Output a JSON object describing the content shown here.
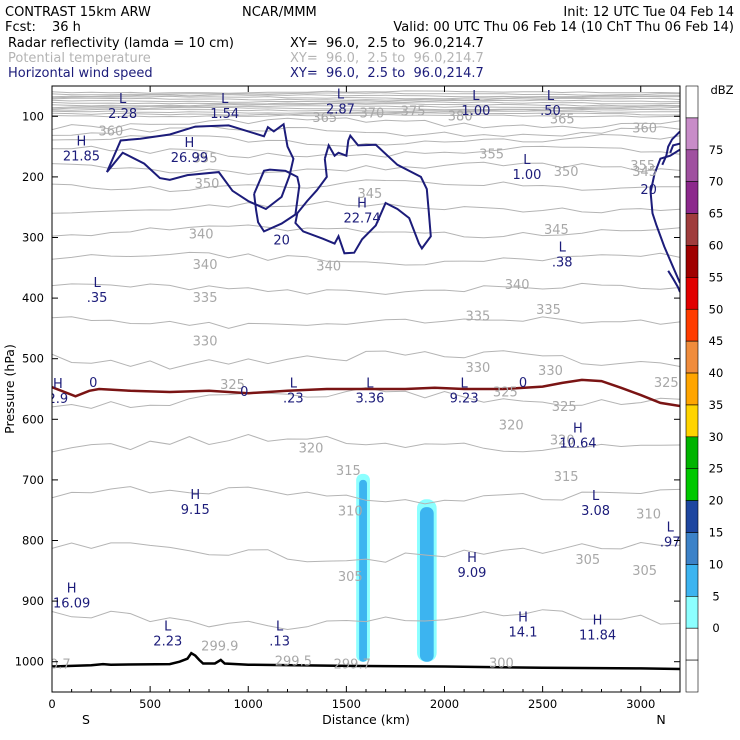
{
  "header": {
    "left_line1": "CONTRAST 15km ARW",
    "center_line1": "NCAR/MMM",
    "right_line1": "Init: 12 UTC Tue 04 Feb 14",
    "fcst_label": "Fcst:",
    "fcst_value": "36 h",
    "valid_line": "Valid: 00 UTC Thu 06 Feb 14 (10 ChT Thu 06 Feb 14)",
    "fields": [
      {
        "name": "Radar reflectivity (lamda = 10 cm)",
        "xy": "XY=  96.0,  2.5 to  96.0,214.7",
        "color": "#000000"
      },
      {
        "name": "Potential temperature",
        "xy": "XY=  96.0,  2.5 to  96.0,214.7",
        "color": "#b4b4b4"
      },
      {
        "name": "Horizontal wind speed",
        "xy": "XY=  96.0,  2.5 to  96.0,214.7",
        "color": "#1c1c7a"
      }
    ]
  },
  "chart_data": {
    "type": "cross-section",
    "xlabel": "Distance (km)",
    "ylabel": "Pressure (hPa)",
    "xlim": [
      0,
      3200
    ],
    "ylim": [
      1050,
      50
    ],
    "x_ticks": [
      0,
      500,
      1000,
      1500,
      2000,
      2500,
      3000
    ],
    "y_ticks": [
      100,
      200,
      300,
      400,
      500,
      600,
      700,
      800,
      900,
      1000
    ],
    "end_labels": {
      "left": "S",
      "right": "N"
    },
    "colorbar": {
      "title": "dBZ",
      "levels": [
        "0",
        "5",
        "10",
        "15",
        "20",
        "25",
        "30",
        "35",
        "40",
        "45",
        "50",
        "55",
        "60",
        "65",
        "70",
        "75"
      ],
      "colors": [
        "#ffffff",
        "#ffffff",
        "#8cffff",
        "#3cb4f0",
        "#3c82c8",
        "#1e46a0",
        "#00c800",
        "#00b400",
        "#ffd400",
        "#ffa500",
        "#f08c3c",
        "#ff3c00",
        "#e10000",
        "#a00000",
        "#a03c3c",
        "#8c288c",
        "#a050a0",
        "#c88cc8",
        "#ffffff"
      ]
    },
    "theta_labels": [
      {
        "text": "370",
        "x": 1630,
        "p": 95
      },
      {
        "text": "375",
        "x": 1840,
        "p": 92
      },
      {
        "text": "360",
        "x": 300,
        "p": 125
      },
      {
        "text": "365",
        "x": 1390,
        "p": 103
      },
      {
        "text": "380",
        "x": 2080,
        "p": 100
      },
      {
        "text": "365",
        "x": 2600,
        "p": 105
      },
      {
        "text": "360",
        "x": 3020,
        "p": 120
      },
      {
        "text": "355",
        "x": 780,
        "p": 170
      },
      {
        "text": "355",
        "x": 2240,
        "p": 163
      },
      {
        "text": "355",
        "x": 3010,
        "p": 182
      },
      {
        "text": "350",
        "x": 790,
        "p": 212
      },
      {
        "text": "350",
        "x": 2620,
        "p": 192
      },
      {
        "text": "345",
        "x": 1620,
        "p": 228
      },
      {
        "text": "345",
        "x": 3020,
        "p": 192
      },
      {
        "text": "345",
        "x": 2570,
        "p": 288
      },
      {
        "text": "340",
        "x": 760,
        "p": 295
      },
      {
        "text": "340",
        "x": 780,
        "p": 345
      },
      {
        "text": "340",
        "x": 1410,
        "p": 348
      },
      {
        "text": "340",
        "x": 2370,
        "p": 378
      },
      {
        "text": "335",
        "x": 780,
        "p": 400
      },
      {
        "text": "335",
        "x": 2170,
        "p": 430
      },
      {
        "text": "335",
        "x": 2530,
        "p": 420
      },
      {
        "text": "330",
        "x": 780,
        "p": 472
      },
      {
        "text": "330",
        "x": 2170,
        "p": 515
      },
      {
        "text": "330",
        "x": 2540,
        "p": 520
      },
      {
        "text": "325",
        "x": 920,
        "p": 543
      },
      {
        "text": "325",
        "x": 2310,
        "p": 556
      },
      {
        "text": "325",
        "x": 2610,
        "p": 580
      },
      {
        "text": "325",
        "x": 3130,
        "p": 540
      },
      {
        "text": "320",
        "x": 2340,
        "p": 610
      },
      {
        "text": "320",
        "x": 2600,
        "p": 635
      },
      {
        "text": "320",
        "x": 1320,
        "p": 648
      },
      {
        "text": "315",
        "x": 1510,
        "p": 685
      },
      {
        "text": "315",
        "x": 2620,
        "p": 695
      },
      {
        "text": "310",
        "x": 1520,
        "p": 752
      },
      {
        "text": "310",
        "x": 3040,
        "p": 757
      },
      {
        "text": "305",
        "x": 1520,
        "p": 860
      },
      {
        "text": "305",
        "x": 2730,
        "p": 832
      },
      {
        "text": "305",
        "x": 3020,
        "p": 850
      },
      {
        "text": "300",
        "x": 2290,
        "p": 1003
      },
      {
        "text": "299.9",
        "x": 855,
        "p": 975
      },
      {
        "text": "299.5",
        "x": 1230,
        "p": 1000
      },
      {
        "text": "299.7",
        "x": 1530,
        "p": 1005
      },
      {
        "text": "300.7",
        "x": 0,
        "p": 1005
      }
    ],
    "wind_hl": [
      {
        "kind": "L",
        "value": "2.28",
        "x": 360,
        "p": 85
      },
      {
        "kind": "L",
        "value": "1.54",
        "x": 880,
        "p": 85
      },
      {
        "kind": "L",
        "value": "2.87",
        "x": 1470,
        "p": 77
      },
      {
        "kind": "L",
        "value": "1.00",
        "x": 2160,
        "p": 80
      },
      {
        "kind": "L",
        "value": ".50",
        "x": 2540,
        "p": 80
      },
      {
        "kind": "H",
        "value": "21.85",
        "x": 150,
        "p": 155
      },
      {
        "kind": "H",
        "value": "26.99",
        "x": 700,
        "p": 157
      },
      {
        "kind": "L",
        "value": "1.00",
        "x": 2420,
        "p": 185
      },
      {
        "kind": "H",
        "value": "22.74",
        "x": 1580,
        "p": 257
      },
      {
        "kind": "L",
        "value": ".38",
        "x": 2600,
        "p": 330
      },
      {
        "kind": "L",
        "value": ".35",
        "x": 230,
        "p": 388
      },
      {
        "kind": "H",
        "value": "2.9",
        "x": 30,
        "p": 555
      },
      {
        "kind": "L",
        "value": ".23",
        "x": 1230,
        "p": 554
      },
      {
        "kind": "L",
        "value": "3.36",
        "x": 1620,
        "p": 554
      },
      {
        "kind": "L",
        "value": "9.23",
        "x": 2100,
        "p": 554
      },
      {
        "kind": "H",
        "value": "10.64",
        "x": 2680,
        "p": 628
      },
      {
        "kind": "H",
        "value": "9.15",
        "x": 730,
        "p": 738
      },
      {
        "kind": "L",
        "value": "3.08",
        "x": 2770,
        "p": 740
      },
      {
        "kind": "L",
        "value": ".97",
        "x": 3150,
        "p": 792
      },
      {
        "kind": "H",
        "value": "9.09",
        "x": 2140,
        "p": 842
      },
      {
        "kind": "H",
        "value": "16.09",
        "x": 100,
        "p": 892
      },
      {
        "kind": "L",
        "value": "2.23",
        "x": 590,
        "p": 955
      },
      {
        "kind": "L",
        "value": ".13",
        "x": 1160,
        "p": 955
      },
      {
        "kind": "H",
        "value": "14.1",
        "x": 2400,
        "p": 940
      },
      {
        "kind": "H",
        "value": "11.84",
        "x": 2780,
        "p": 945
      }
    ],
    "wind_contour_labels": [
      {
        "text": "20",
        "x": 1170,
        "p": 305
      },
      {
        "text": "20",
        "x": 3040,
        "p": 222
      },
      {
        "text": "0",
        "x": 210,
        "p": 540
      },
      {
        "text": "0",
        "x": 980,
        "p": 555
      },
      {
        "text": "0",
        "x": 2400,
        "p": 540
      }
    ],
    "wind_20_contours": [
      [
        [
          280,
          192
        ],
        [
          350,
          140
        ],
        [
          450,
          137
        ],
        [
          600,
          130
        ],
        [
          730,
          117
        ],
        [
          900,
          115
        ],
        [
          1000,
          125
        ],
        [
          1080,
          133
        ],
        [
          1100,
          118
        ],
        [
          1130,
          125
        ],
        [
          1180,
          113
        ],
        [
          1200,
          150
        ],
        [
          1230,
          170
        ],
        [
          1210,
          198
        ],
        [
          1170,
          233
        ],
        [
          1090,
          253
        ],
        [
          1000,
          240
        ],
        [
          920,
          223
        ],
        [
          850,
          192
        ],
        [
          690,
          197
        ],
        [
          600,
          205
        ],
        [
          550,
          202
        ],
        [
          470,
          178
        ],
        [
          360,
          160
        ],
        [
          280,
          192
        ]
      ],
      [
        [
          1030,
          228
        ],
        [
          1080,
          190
        ],
        [
          1110,
          188
        ],
        [
          1190,
          190
        ],
        [
          1250,
          200
        ],
        [
          1260,
          215
        ],
        [
          1240,
          262
        ],
        [
          1170,
          277
        ],
        [
          1080,
          290
        ],
        [
          1050,
          275
        ],
        [
          1040,
          255
        ],
        [
          1030,
          228
        ]
      ],
      [
        [
          1390,
          170
        ],
        [
          1410,
          148
        ],
        [
          1440,
          165
        ],
        [
          1460,
          160
        ],
        [
          1500,
          165
        ],
        [
          1510,
          140
        ],
        [
          1520,
          132
        ],
        [
          1560,
          148
        ],
        [
          1650,
          147
        ],
        [
          1760,
          180
        ],
        [
          1880,
          200
        ],
        [
          1910,
          220
        ],
        [
          1920,
          258
        ],
        [
          1930,
          298
        ],
        [
          1885,
          318
        ],
        [
          1870,
          310
        ],
        [
          1820,
          268
        ],
        [
          1760,
          253
        ],
        [
          1700,
          243
        ],
        [
          1650,
          280
        ],
        [
          1580,
          303
        ],
        [
          1540,
          325
        ],
        [
          1490,
          326
        ],
        [
          1460,
          298
        ],
        [
          1440,
          310
        ],
        [
          1380,
          302
        ],
        [
          1280,
          290
        ],
        [
          1240,
          276
        ],
        [
          1250,
          260
        ],
        [
          1300,
          240
        ],
        [
          1350,
          222
        ],
        [
          1400,
          200
        ],
        [
          1390,
          170
        ]
      ],
      [
        [
          3200,
          155
        ],
        [
          3150,
          165
        ],
        [
          3100,
          170
        ],
        [
          3070,
          195
        ],
        [
          3050,
          225
        ],
        [
          3060,
          260
        ],
        [
          3080,
          280
        ],
        [
          3120,
          315
        ],
        [
          3160,
          345
        ],
        [
          3200,
          375
        ]
      ],
      [
        [
          3140,
          355
        ],
        [
          3165,
          368
        ],
        [
          3190,
          382
        ],
        [
          3200,
          390
        ]
      ],
      [
        [
          3200,
          145
        ],
        [
          3165,
          148
        ],
        [
          3150,
          160
        ]
      ],
      [
        [
          3200,
          125
        ],
        [
          3160,
          138
        ],
        [
          3140,
          150
        ],
        [
          3130,
          165
        ],
        [
          3110,
          180
        ]
      ]
    ],
    "zero_wind_line": [
      [
        0,
        547
      ],
      [
        120,
        562
      ],
      [
        190,
        553
      ],
      [
        240,
        550
      ],
      [
        400,
        553
      ],
      [
        600,
        555
      ],
      [
        800,
        553
      ],
      [
        1000,
        557
      ],
      [
        1200,
        553
      ],
      [
        1400,
        550
      ],
      [
        1600,
        550
      ],
      [
        1800,
        550
      ],
      [
        1950,
        548
      ],
      [
        2100,
        550
      ],
      [
        2300,
        550
      ],
      [
        2500,
        546
      ],
      [
        2600,
        540
      ],
      [
        2700,
        535
      ],
      [
        2800,
        537
      ],
      [
        2900,
        548
      ],
      [
        3000,
        560
      ],
      [
        3100,
        573
      ],
      [
        3200,
        578
      ]
    ],
    "terrain": [
      [
        0,
        1008
      ],
      [
        200,
        1006
      ],
      [
        260,
        1004
      ],
      [
        300,
        1005
      ],
      [
        600,
        1004
      ],
      [
        650,
        1000
      ],
      [
        690,
        995
      ],
      [
        710,
        986
      ],
      [
        730,
        990
      ],
      [
        750,
        997
      ],
      [
        770,
        1003
      ],
      [
        830,
        1003
      ],
      [
        860,
        997
      ],
      [
        880,
        1003
      ],
      [
        1000,
        1005
      ],
      [
        1500,
        1007
      ],
      [
        2000,
        1008
      ],
      [
        2500,
        1010
      ],
      [
        3000,
        1011
      ],
      [
        3200,
        1012
      ]
    ],
    "reflectivity_cells": [
      {
        "x1": 1550,
        "x2": 1620,
        "p_top": 690,
        "level": "10"
      },
      {
        "x1": 1565,
        "x2": 1605,
        "p_top": 700,
        "level": "15"
      },
      {
        "x1": 1860,
        "x2": 1960,
        "p_top": 732,
        "level": "10"
      },
      {
        "x1": 1875,
        "x2": 1945,
        "p_top": 745,
        "level": "15"
      }
    ]
  }
}
